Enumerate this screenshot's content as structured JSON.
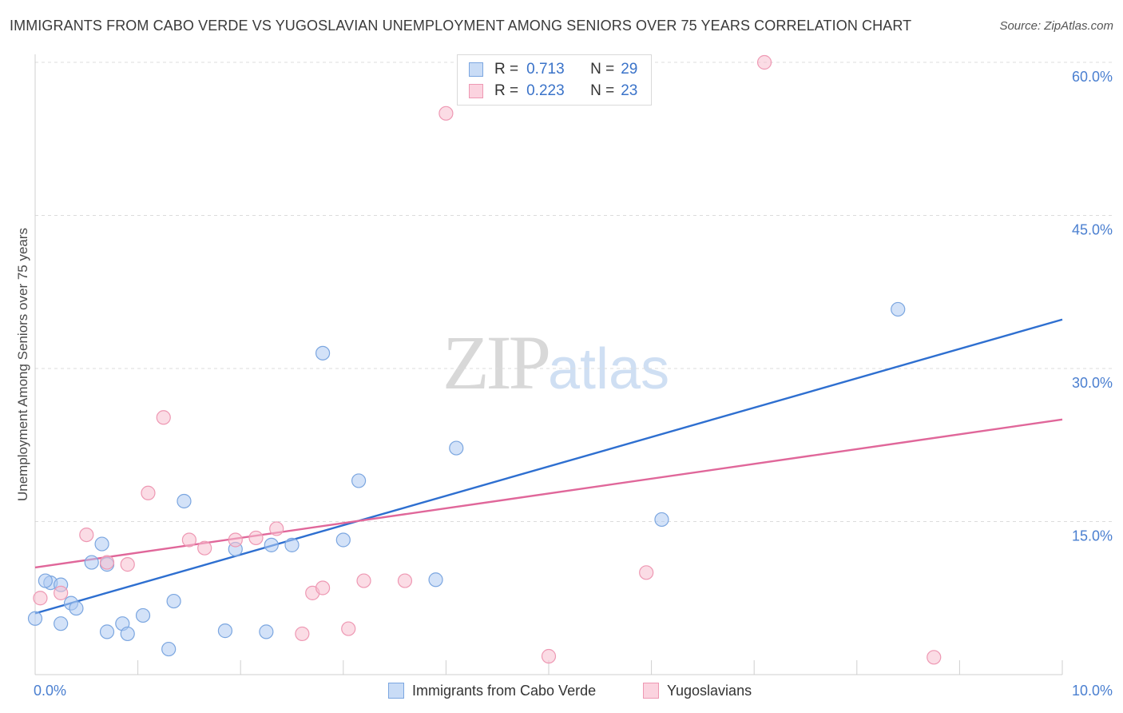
{
  "title": "IMMIGRANTS FROM CABO VERDE VS YUGOSLAVIAN UNEMPLOYMENT AMONG SENIORS OVER 75 YEARS CORRELATION CHART",
  "source": "Source: ZipAtlas.com",
  "watermark": {
    "zip": "ZIP",
    "atlas": "atlas"
  },
  "colors": {
    "blue_fill": "#aecbf2",
    "blue_stroke": "#7ba6e0",
    "blue_line": "#2e6fd0",
    "pink_fill": "#f7c0d0",
    "pink_stroke": "#ee98b3",
    "pink_line": "#e0679a",
    "tick_text": "#4a7fd0"
  },
  "legend": {
    "r_label": "R =",
    "n_label": "N =",
    "series": [
      {
        "r": "0.713",
        "n": "29"
      },
      {
        "r": "0.223",
        "n": "23"
      }
    ]
  },
  "bottom_legend": {
    "blue": "Immigrants from Cabo Verde",
    "pink": "Yugoslavians"
  },
  "chart_data": {
    "type": "scatter",
    "title": "IMMIGRANTS FROM CABO VERDE VS YUGOSLAVIAN UNEMPLOYMENT AMONG SENIORS OVER 75 YEARS CORRELATION CHART",
    "xlabel": "",
    "ylabel": "Unemployment Among Seniors over 75 years",
    "xlim": [
      0,
      10
    ],
    "ylim": [
      0,
      60
    ],
    "x_tick_labels": [
      "0.0%",
      "10.0%"
    ],
    "y_ticks": [
      15,
      30,
      45,
      60
    ],
    "y_tick_labels": [
      "15.0%",
      "30.0%",
      "45.0%",
      "60.0%"
    ],
    "series": [
      {
        "name": "Immigrants from Cabo Verde",
        "color": "blue",
        "r": 0.713,
        "n": 29,
        "points": [
          [
            0.0,
            5.5
          ],
          [
            0.15,
            9.0
          ],
          [
            0.25,
            8.8
          ],
          [
            0.35,
            7.0
          ],
          [
            0.4,
            6.5
          ],
          [
            0.25,
            5.0
          ],
          [
            0.55,
            11.0
          ],
          [
            0.65,
            12.8
          ],
          [
            0.7,
            4.2
          ],
          [
            0.7,
            10.8
          ],
          [
            0.85,
            5.0
          ],
          [
            0.9,
            4.0
          ],
          [
            1.05,
            5.8
          ],
          [
            1.35,
            7.2
          ],
          [
            1.45,
            17.0
          ],
          [
            1.3,
            2.5
          ],
          [
            1.85,
            4.3
          ],
          [
            1.95,
            12.3
          ],
          [
            2.25,
            4.2
          ],
          [
            2.3,
            12.7
          ],
          [
            2.5,
            12.7
          ],
          [
            2.8,
            31.5
          ],
          [
            3.0,
            13.2
          ],
          [
            3.15,
            19.0
          ],
          [
            3.9,
            9.3
          ],
          [
            4.1,
            22.2
          ],
          [
            6.1,
            15.2
          ],
          [
            8.4,
            35.8
          ],
          [
            0.1,
            9.2
          ]
        ],
        "trend": [
          [
            0.0,
            6.0
          ],
          [
            10.0,
            34.8
          ]
        ]
      },
      {
        "name": "Yugoslavians",
        "color": "pink",
        "r": 0.223,
        "n": 23,
        "points": [
          [
            0.05,
            7.5
          ],
          [
            0.25,
            8.0
          ],
          [
            0.5,
            13.7
          ],
          [
            0.7,
            11.0
          ],
          [
            0.9,
            10.8
          ],
          [
            1.1,
            17.8
          ],
          [
            1.25,
            25.2
          ],
          [
            1.5,
            13.2
          ],
          [
            1.65,
            12.4
          ],
          [
            1.95,
            13.2
          ],
          [
            2.15,
            13.4
          ],
          [
            2.35,
            14.3
          ],
          [
            2.6,
            4.0
          ],
          [
            2.7,
            8.0
          ],
          [
            2.8,
            8.5
          ],
          [
            3.05,
            4.5
          ],
          [
            3.2,
            9.2
          ],
          [
            3.6,
            9.2
          ],
          [
            4.0,
            55.0
          ],
          [
            5.0,
            1.8
          ],
          [
            5.95,
            10.0
          ],
          [
            7.1,
            60.0
          ],
          [
            8.75,
            1.7
          ]
        ],
        "trend": [
          [
            0.0,
            10.5
          ],
          [
            10.0,
            25.0
          ]
        ]
      }
    ]
  }
}
